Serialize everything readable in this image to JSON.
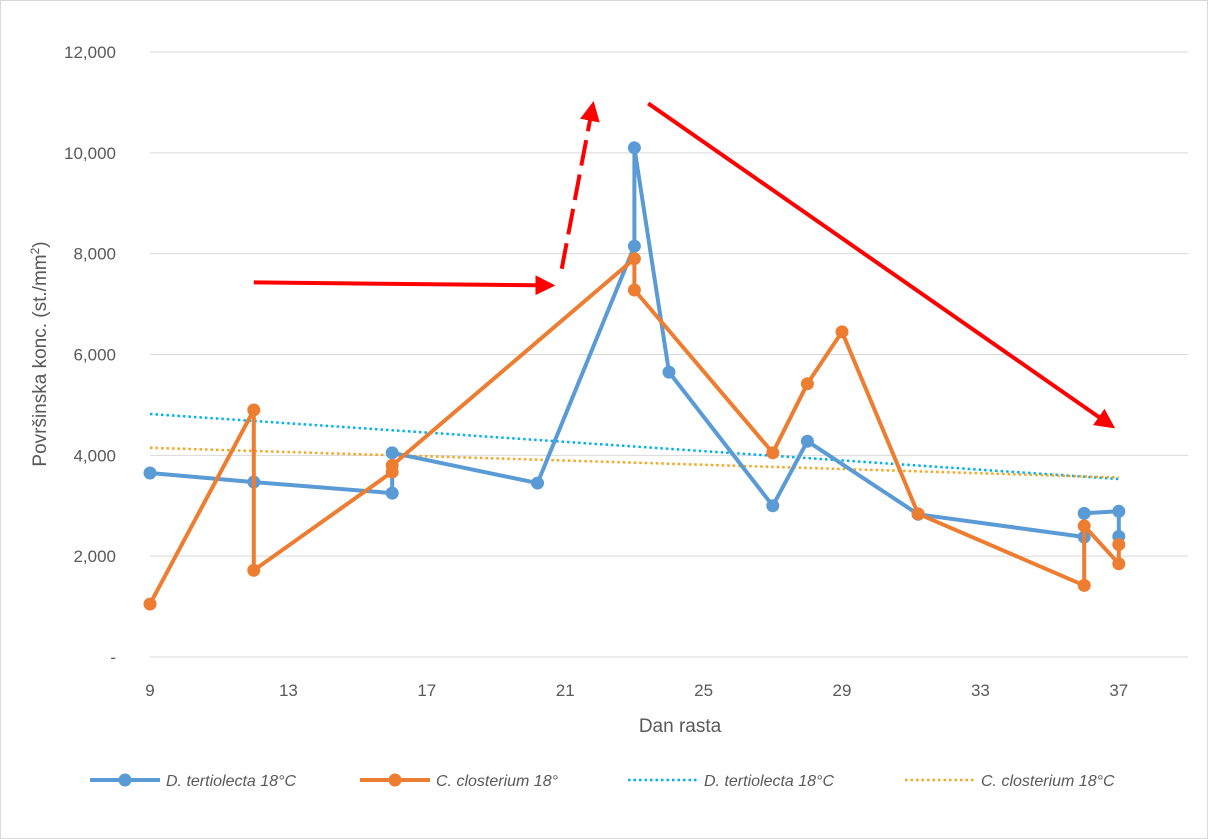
{
  "chart_data": {
    "type": "line",
    "xlabel": "Dan rasta",
    "ylabel": "Površinska konc. (st./mm",
    "ylabel_sup": "2",
    "ylabel_end": ")",
    "xlim": [
      9,
      39
    ],
    "ylim": [
      0,
      12000
    ],
    "x_ticks": [
      9,
      13,
      17,
      21,
      25,
      29,
      33,
      37
    ],
    "y_ticks": [
      0,
      2000,
      4000,
      6000,
      8000,
      10000,
      12000
    ],
    "x_tick_labels": [
      "9",
      "13",
      "17",
      "21",
      "25",
      "29",
      "33",
      "37"
    ],
    "y_tick_labels": [
      "-",
      "2,000",
      "4,000",
      "6,000",
      "8,000",
      "10,000",
      "12,000"
    ],
    "grid": "horizontal",
    "legend_position": "bottom",
    "series": [
      {
        "name": "D. tertiolecta 18°C",
        "style": "line-markers",
        "color": "#5b9bd5",
        "points": [
          [
            9,
            3650
          ],
          [
            12,
            3470
          ],
          [
            16,
            3250
          ],
          [
            16,
            4050
          ],
          [
            20.2,
            3450
          ],
          [
            23,
            8150
          ],
          [
            23,
            10100
          ],
          [
            24,
            5650
          ],
          [
            27,
            3000
          ],
          [
            28,
            4280
          ],
          [
            31.2,
            2830
          ],
          [
            36,
            2380
          ],
          [
            36,
            2850
          ],
          [
            37,
            2890
          ],
          [
            37,
            2390
          ]
        ]
      },
      {
        "name": "C. closterium 18°",
        "style": "line-markers",
        "color": "#ed7d31",
        "points": [
          [
            9,
            1050
          ],
          [
            12,
            4900
          ],
          [
            12,
            1720
          ],
          [
            16,
            3670
          ],
          [
            16,
            3800
          ],
          [
            23,
            7900
          ],
          [
            23,
            7280
          ],
          [
            27,
            4050
          ],
          [
            28,
            5420
          ],
          [
            29,
            6450
          ],
          [
            31.2,
            2840
          ],
          [
            36,
            1420
          ],
          [
            36,
            2600
          ],
          [
            37,
            1850
          ],
          [
            37,
            2230
          ]
        ]
      },
      {
        "name": "D. tertiolecta 18°C",
        "style": "trendline",
        "color": "#00b0f0",
        "points": [
          [
            9,
            4820
          ],
          [
            37,
            3530
          ]
        ]
      },
      {
        "name": "C. closterium 18°C",
        "style": "trendline",
        "color": "#f5a623",
        "points": [
          [
            9,
            4150
          ],
          [
            37,
            3560
          ]
        ]
      }
    ],
    "annotations": [
      {
        "type": "arrow",
        "style": "solid",
        "color": "#ff0000",
        "from": [
          12,
          7430
        ],
        "to": [
          20.6,
          7370
        ]
      },
      {
        "type": "arrow",
        "style": "dashed",
        "color": "#ff0000",
        "from": [
          20.9,
          7700
        ],
        "to": [
          21.8,
          10950
        ]
      },
      {
        "type": "arrow",
        "style": "solid",
        "color": "#ff0000",
        "from": [
          23.4,
          10980
        ],
        "to": [
          36.8,
          4580
        ]
      }
    ]
  }
}
